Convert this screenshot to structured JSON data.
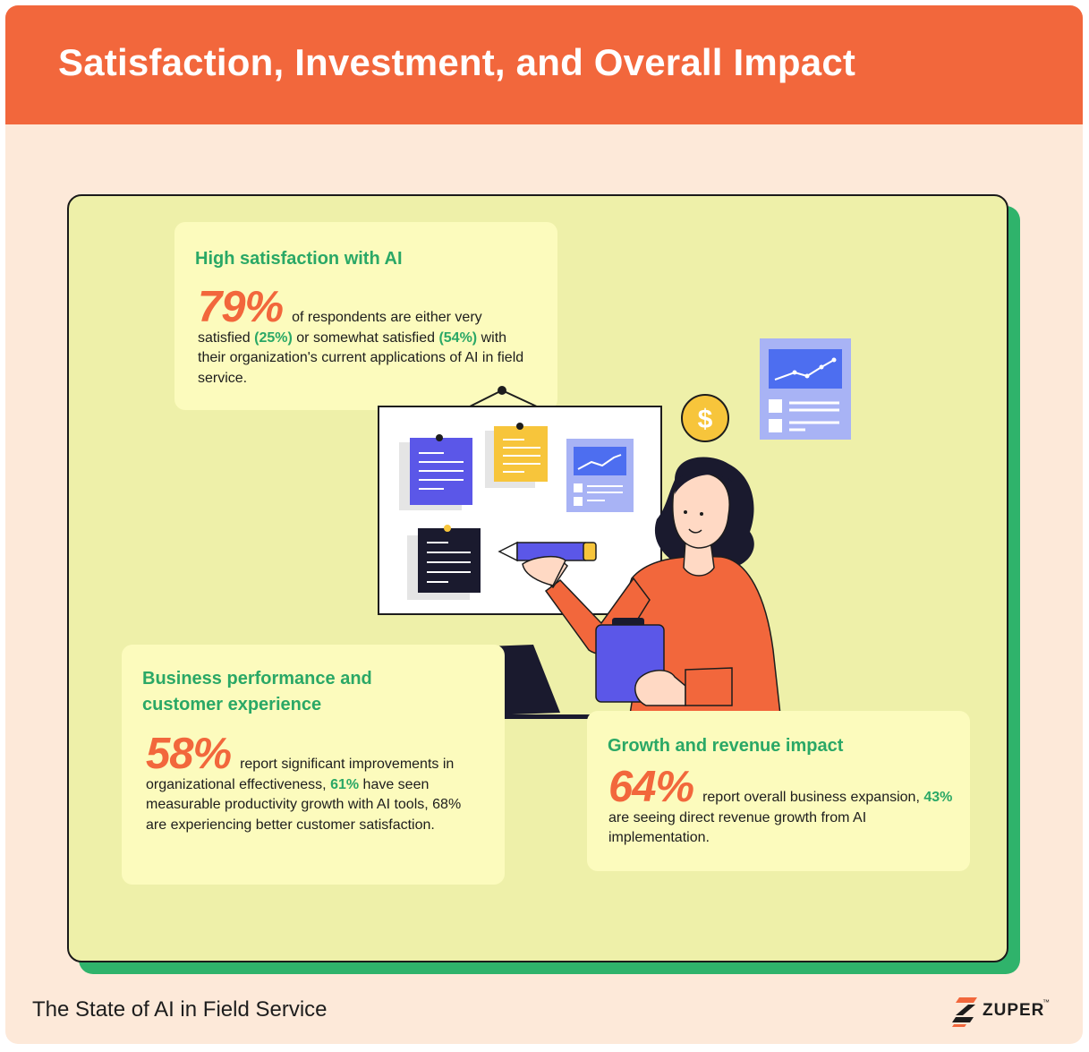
{
  "header": {
    "title": "Satisfaction, Investment, and Overall Impact"
  },
  "colors": {
    "accent_orange": "#f2673c",
    "accent_green": "#2aa866",
    "panel": "#eef0a9",
    "card": "#fcfbbd",
    "page": "#fde9d9"
  },
  "cards": [
    {
      "heading": "High satisfaction with AI",
      "stat": "79%",
      "segments": [
        {
          "t": "of respondents are either very satisfied ",
          "hl": false
        },
        {
          "t": "(25%)",
          "hl": true
        },
        {
          "t": " or somewhat satisfied ",
          "hl": false
        },
        {
          "t": "(54%)",
          "hl": true
        },
        {
          "t": " with their organization's current applications of AI in field service.",
          "hl": false
        }
      ]
    },
    {
      "heading": "Business performance and customer experience",
      "stat": "58%",
      "segments": [
        {
          "t": "report significant improvements in organizational effectiveness, ",
          "hl": false
        },
        {
          "t": "61%",
          "hl": true
        },
        {
          "t": " have seen measurable productivity growth with AI tools, 68% are experiencing better customer satisfaction.",
          "hl": false
        }
      ]
    },
    {
      "heading": "Growth and revenue impact",
      "stat": "64%",
      "segments": [
        {
          "t": "report overall business expansion, ",
          "hl": false
        },
        {
          "t": "43%",
          "hl": true
        },
        {
          "t": " are seeing direct revenue growth from AI implementation.",
          "hl": false
        }
      ]
    }
  ],
  "illustration": {
    "coin_symbol": "$"
  },
  "footer": {
    "text": "The State of AI in Field Service",
    "logo_text": "ZUPER",
    "logo_tm": "™"
  }
}
